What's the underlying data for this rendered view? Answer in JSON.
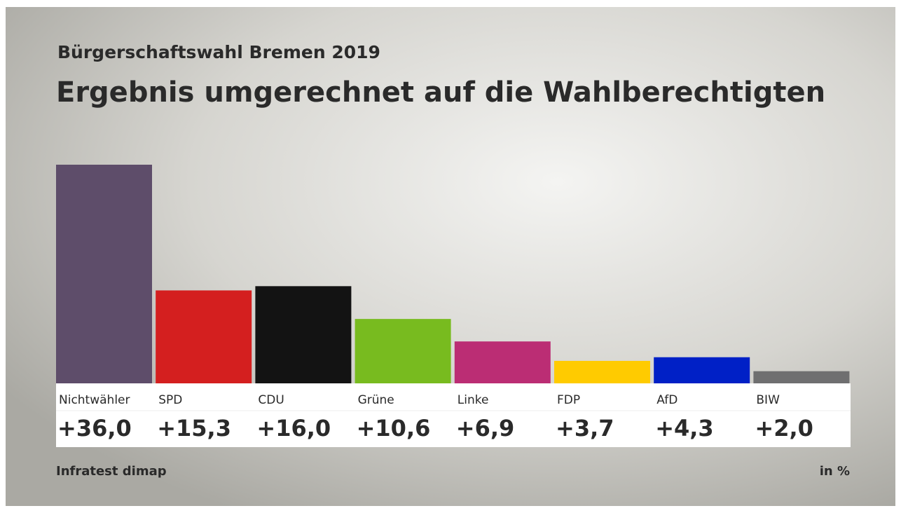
{
  "chart_data": {
    "type": "bar",
    "subtitle": "Bürgerschaftswahl Bremen 2019",
    "title": "Ergebnis umgerechnet auf die Wahlberechtigten",
    "categories": [
      "Nichtwähler",
      "SPD",
      "CDU",
      "Grüne",
      "Linke",
      "FDP",
      "AfD",
      "BIW"
    ],
    "values": [
      36.0,
      15.3,
      16.0,
      10.6,
      6.9,
      3.7,
      4.3,
      2.0
    ],
    "value_labels": [
      "+36,0",
      "+15,3",
      "+16,0",
      "+10,6",
      "+6,9",
      "+3,7",
      "+4,3",
      "+2,0"
    ],
    "colors": [
      "#5e4d6a",
      "#d41f1f",
      "#131313",
      "#78bb1f",
      "#bb2d74",
      "#ffcb00",
      "#0020c6",
      "#6f6f70"
    ],
    "source": "Infratest dimap",
    "unit": "in %"
  }
}
